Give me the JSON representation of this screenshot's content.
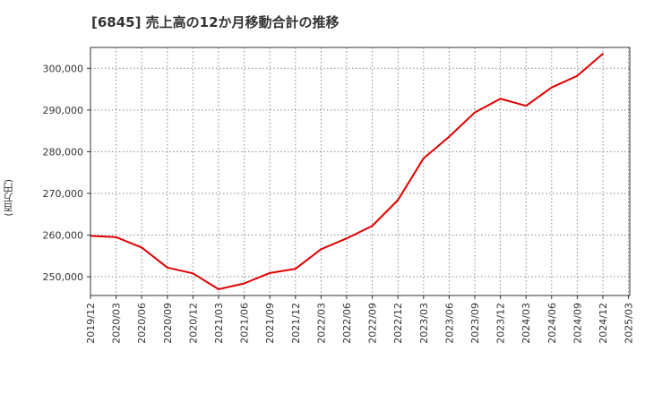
{
  "chart_data": {
    "type": "line",
    "title": "[6845]  売上高の12か月移動合計の推移",
    "ylabel": "(百万円)",
    "xlabel": "",
    "ylim": [
      245500,
      305000
    ],
    "yticks": [
      250000,
      260000,
      270000,
      280000,
      290000,
      300000
    ],
    "ytick_labels": [
      "250,000",
      "260,000",
      "270,000",
      "280,000",
      "290,000",
      "300,000"
    ],
    "xticks": [
      "2019/12",
      "2020/03",
      "2020/06",
      "2020/09",
      "2020/12",
      "2021/03",
      "2021/06",
      "2021/09",
      "2021/12",
      "2022/03",
      "2022/06",
      "2022/09",
      "2022/12",
      "2023/03",
      "2023/06",
      "2023/09",
      "2023/12",
      "2024/03",
      "2024/06",
      "2024/09",
      "2024/12",
      "2025/03"
    ],
    "grid": true,
    "series": [
      {
        "name": "売上高の12か月移動合計",
        "color": "#e00000",
        "x": [
          "2019/12",
          "2020/03",
          "2020/06",
          "2020/09",
          "2020/12",
          "2021/03",
          "2021/06",
          "2021/09",
          "2021/12",
          "2022/03",
          "2022/06",
          "2022/09",
          "2022/12",
          "2023/03",
          "2023/06",
          "2023/09",
          "2023/12",
          "2024/03",
          "2024/06",
          "2024/09",
          "2024/12"
        ],
        "values": [
          259800,
          259500,
          257000,
          252200,
          250800,
          247000,
          248400,
          250900,
          251900,
          256600,
          259200,
          262200,
          268400,
          278400,
          283600,
          289400,
          292700,
          291000,
          295400,
          298200,
          303500
        ]
      }
    ]
  }
}
